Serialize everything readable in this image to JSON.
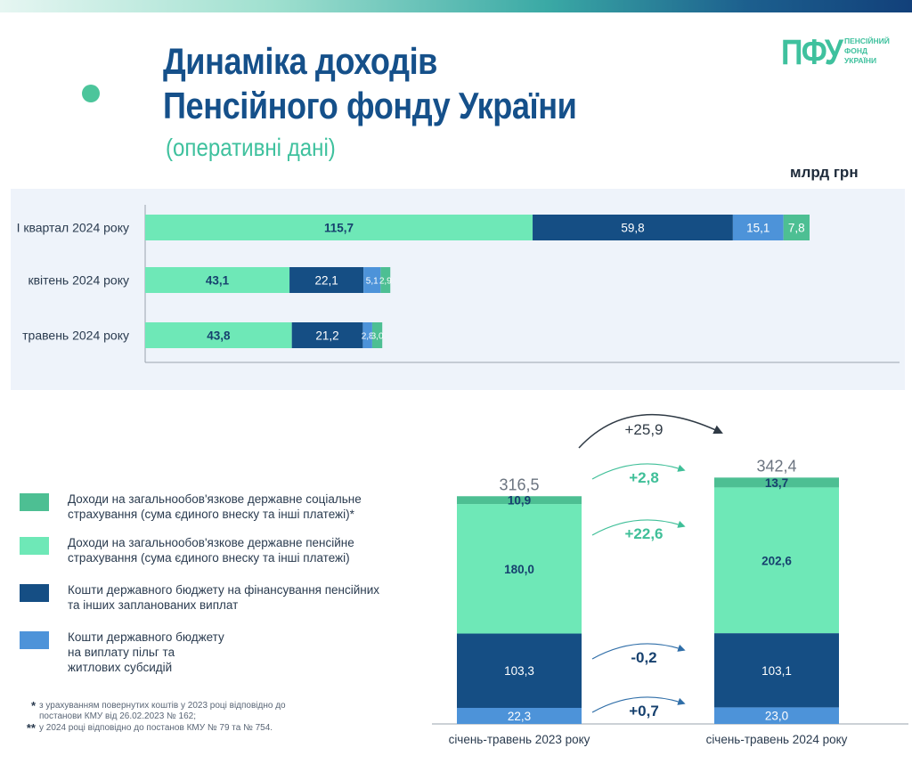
{
  "header": {
    "title_line1": "Динаміка доходів",
    "title_line2": "Пенсійного фонду України",
    "subtitle": "(оперативні дані)",
    "logo_mark": "ПФУ",
    "logo_line1": "ПЕНСІЙНИЙ",
    "logo_line2": "ФОНД",
    "logo_line3": "УКРАЇНИ",
    "unit": "млрд грн"
  },
  "colors": {
    "esv_social": "#4dbf93",
    "esv_pension": "#6ee8b7",
    "budget_payments": "#154e84",
    "budget_benefits": "#4d93d9"
  },
  "chart_data": [
    {
      "type": "bar",
      "orientation": "horizontal",
      "stacked": true,
      "categories": [
        "І квартал 2024 року",
        "квітень 2024 року",
        "травень 2024 року"
      ],
      "series": [
        {
          "key": "esv_pension",
          "values": [
            115.7,
            43.1,
            43.8
          ],
          "labels": [
            "115,7",
            "43,1",
            "43,8"
          ]
        },
        {
          "key": "budget_payments",
          "values": [
            59.8,
            22.1,
            21.2
          ],
          "labels": [
            "59,8",
            "22,1",
            "21,2"
          ]
        },
        {
          "key": "budget_benefits",
          "values": [
            15.1,
            5.1,
            2.8
          ],
          "labels": [
            "15,1",
            "5,1",
            "2,8"
          ]
        },
        {
          "key": "esv_social",
          "values": [
            7.8,
            2.9,
            3.0
          ],
          "labels": [
            "7,8",
            "2,9",
            "3,0"
          ]
        }
      ],
      "unit": "млрд грн"
    },
    {
      "type": "bar",
      "stacked": true,
      "categories": [
        "січень-травень 2023 року",
        "січень-травень 2024 року"
      ],
      "totals": [
        "316,5",
        "342,4"
      ],
      "total_change": "+25,9",
      "series": [
        {
          "key": "budget_benefits",
          "values": [
            22.3,
            23.0
          ],
          "labels": [
            "22,3",
            "23,0"
          ],
          "change": "+0,7"
        },
        {
          "key": "budget_payments",
          "values": [
            103.3,
            103.1
          ],
          "labels": [
            "103,3",
            "103,1"
          ],
          "change": "-0,2"
        },
        {
          "key": "esv_pension",
          "values": [
            180.0,
            202.6
          ],
          "labels": [
            "180,0",
            "202,6"
          ],
          "change": "+22,6"
        },
        {
          "key": "esv_social",
          "values": [
            10.9,
            13.7
          ],
          "labels": [
            "10,9",
            "13,7"
          ],
          "change": "+2,8"
        }
      ]
    }
  ],
  "legend": [
    {
      "key": "esv_social",
      "label": "Доходи на загальнообов'язкове державне соціальне страхування (сума єдиного внеску та інші платежі)*"
    },
    {
      "key": "esv_pension",
      "label": "Доходи на загальнообов'язкове державне пенсійне страхування (сума єдиного внеску та інші платежі)"
    },
    {
      "key": "budget_payments",
      "label": "Кошти державного бюджету на фінансування пенсійних та інших запланованих виплат"
    },
    {
      "key": "budget_benefits",
      "label": "Кошти державного бюджету на виплату пільг та житлових субсидій"
    }
  ],
  "footnotes": [
    {
      "mark": "*",
      "text": "з урахуванням повернутих коштів у 2023 році відповідно до постанови КМУ від 26.02.2023 № 162;"
    },
    {
      "mark": "**",
      "text": "у 2024 році відповідно до постанов КМУ № 79 та № 754."
    }
  ]
}
